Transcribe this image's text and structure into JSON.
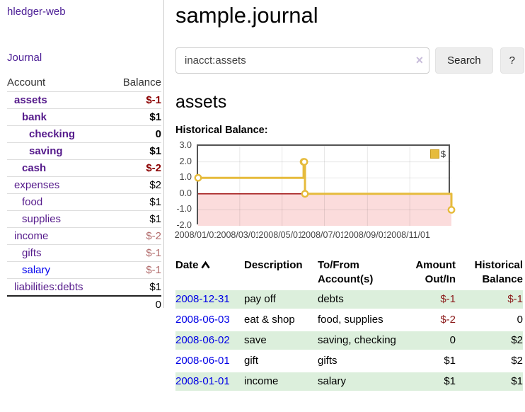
{
  "app": {
    "title": "hledger-web",
    "nav_journal": "Journal"
  },
  "sidebar": {
    "accounts_header": "Account",
    "balance_header": "Balance",
    "rows": [
      {
        "account": "assets",
        "balance": "$-1"
      },
      {
        "account": "bank",
        "balance": "$1"
      },
      {
        "account": "checking",
        "balance": "0"
      },
      {
        "account": "saving",
        "balance": "$1"
      },
      {
        "account": "cash",
        "balance": "$-2"
      },
      {
        "account": "expenses",
        "balance": "$2"
      },
      {
        "account": "food",
        "balance": "$1"
      },
      {
        "account": "supplies",
        "balance": "$1"
      },
      {
        "account": "income",
        "balance": "$-2"
      },
      {
        "account": "gifts",
        "balance": "$-1"
      },
      {
        "account": "salary",
        "balance": "$-1"
      },
      {
        "account": "liabilities:debts",
        "balance": "$1"
      }
    ],
    "total": "0"
  },
  "main": {
    "title": "sample.journal",
    "search": {
      "value": "inacct:assets",
      "clear_glyph": "×",
      "search_button": "Search",
      "help_button": "?"
    },
    "account_title": "assets",
    "chart_label": "Historical Balance:"
  },
  "chart_data": {
    "type": "line",
    "title": "Historical Balance",
    "step": true,
    "series": [
      {
        "name": "$",
        "color": "#e6bb3c",
        "points": [
          [
            "2008-01-01",
            1.0
          ],
          [
            "2008-06-01",
            2.0
          ],
          [
            "2008-06-02",
            2.0
          ],
          [
            "2008-06-03",
            0.0
          ],
          [
            "2008-12-31",
            -1.0
          ]
        ]
      }
    ],
    "xlim": [
      "2008-01-01",
      "2008-12-31"
    ],
    "ylim": [
      -2.0,
      3.0
    ],
    "yticks": [
      "3.0",
      "2.0",
      "1.0",
      "0.0",
      "-1.0",
      "-2.0"
    ],
    "xticks": [
      "2008/01/01",
      "2008/03/01",
      "2008/05/01",
      "2008/07/01",
      "2008/09/01",
      "2008/11/01"
    ],
    "legend": {
      "label": "$",
      "position": "top-right"
    },
    "grid": true,
    "negative_region_color": "#fbdcdc",
    "zero_line_color": "#990000",
    "border_color": "#545454"
  },
  "register": {
    "headers": {
      "date": "Date",
      "sort_icon": "chevron-up-icon",
      "description": "Description",
      "accounts": "To/From Account(s)",
      "amount": "Amount Out/In",
      "balance": "Historical Balance"
    },
    "rows": [
      {
        "date": "2008-12-31",
        "description": "pay off",
        "accounts": "debts",
        "amount": "$-1",
        "balance": "$-1"
      },
      {
        "date": "2008-06-03",
        "description": "eat & shop",
        "accounts": "food, supplies",
        "amount": "$-2",
        "balance": "0"
      },
      {
        "date": "2008-06-02",
        "description": "save",
        "accounts": "saving, checking",
        "amount": "0",
        "balance": "$2"
      },
      {
        "date": "2008-06-01",
        "description": "gift",
        "accounts": "gifts",
        "amount": "$1",
        "balance": "$2"
      },
      {
        "date": "2008-01-01",
        "description": "income",
        "accounts": "salary",
        "amount": "$1",
        "balance": "$1"
      }
    ]
  }
}
